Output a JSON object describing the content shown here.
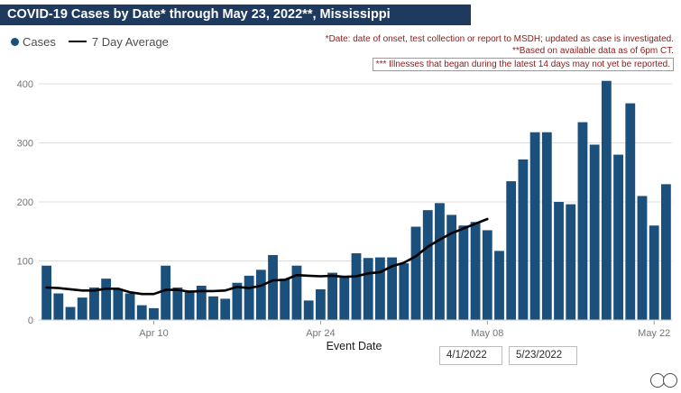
{
  "title": "COVID-19 Cases by Date* through May 23, 2022**, Mississippi",
  "legend": {
    "cases": "Cases",
    "avg": "7 Day Average"
  },
  "footnotes": {
    "line1": "*Date: date of onset, test collection or report to MSDH; updated as case is investigated.",
    "line2": "**Based on available data as of 6pm CT.",
    "line3": "*** Illnesses that began during the latest 14 days may not yet be reported."
  },
  "filters": {
    "start_date": "4/1/2022",
    "end_date": "5/23/2022"
  },
  "colors": {
    "bar": "#1B4F7C",
    "avg_line": "#000000",
    "title_bg": "#1E3A5F",
    "footnote_text": "#8B1A1A",
    "axis_text": "#757575",
    "grid": "#DCDCDC"
  },
  "chart_data": {
    "type": "bar",
    "title": "COVID-19 Cases by Date* through May 23, 2022**, Mississippi",
    "xlabel": "Event Date",
    "ylabel": "",
    "ylim": [
      0,
      420
    ],
    "yticks": [
      0,
      100,
      200,
      300,
      400
    ],
    "grid": true,
    "legend_position": "top-left",
    "x_start": "4/1/2022",
    "x_end": "5/23/2022",
    "x_unit": "day",
    "xticks": [
      {
        "label": "Apr 10",
        "index": 9
      },
      {
        "label": "Apr 24",
        "index": 23
      },
      {
        "label": "May 08",
        "index": 37
      },
      {
        "label": "May 22",
        "index": 51
      }
    ],
    "series": [
      {
        "name": "Cases",
        "type": "bar",
        "color": "#1B4F7C",
        "values": [
          92,
          45,
          22,
          38,
          55,
          70,
          52,
          45,
          25,
          20,
          92,
          55,
          50,
          58,
          40,
          36,
          63,
          75,
          85,
          110,
          70,
          92,
          33,
          52,
          80,
          75,
          113,
          105,
          106,
          106,
          96,
          158,
          186,
          198,
          178,
          160,
          166,
          152,
          117,
          235,
          272,
          318,
          318,
          200,
          196,
          335,
          297,
          405,
          280,
          367,
          210,
          160,
          230
        ]
      },
      {
        "name": "7 Day Average",
        "type": "line",
        "color": "#000000",
        "values": [
          55,
          54,
          52,
          50,
          50,
          53,
          53,
          47,
          44,
          44,
          51,
          51,
          48,
          49,
          49,
          50,
          56,
          54,
          58,
          67,
          68,
          76,
          75,
          74,
          75,
          73,
          74,
          79,
          81,
          91,
          97,
          108,
          124,
          136,
          147,
          155,
          163,
          171
        ]
      }
    ]
  }
}
